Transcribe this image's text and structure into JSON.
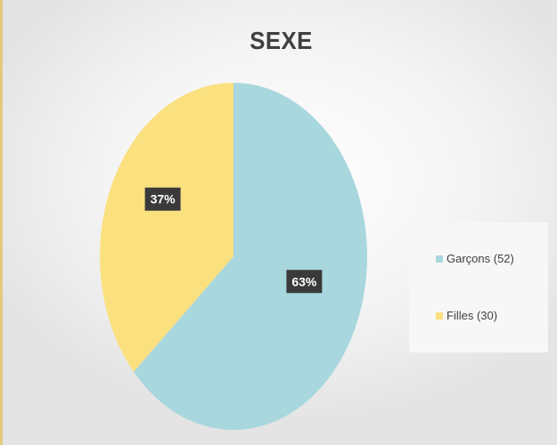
{
  "chart_data": {
    "type": "pie",
    "title": "SEXE",
    "categories": [
      "Garçons (52)",
      "Filles (30)"
    ],
    "values": [
      52,
      30
    ],
    "percent_labels": [
      "63%",
      "37%"
    ],
    "colors": [
      "#a8d7de",
      "#fbe07f"
    ],
    "legend_position": "right"
  }
}
